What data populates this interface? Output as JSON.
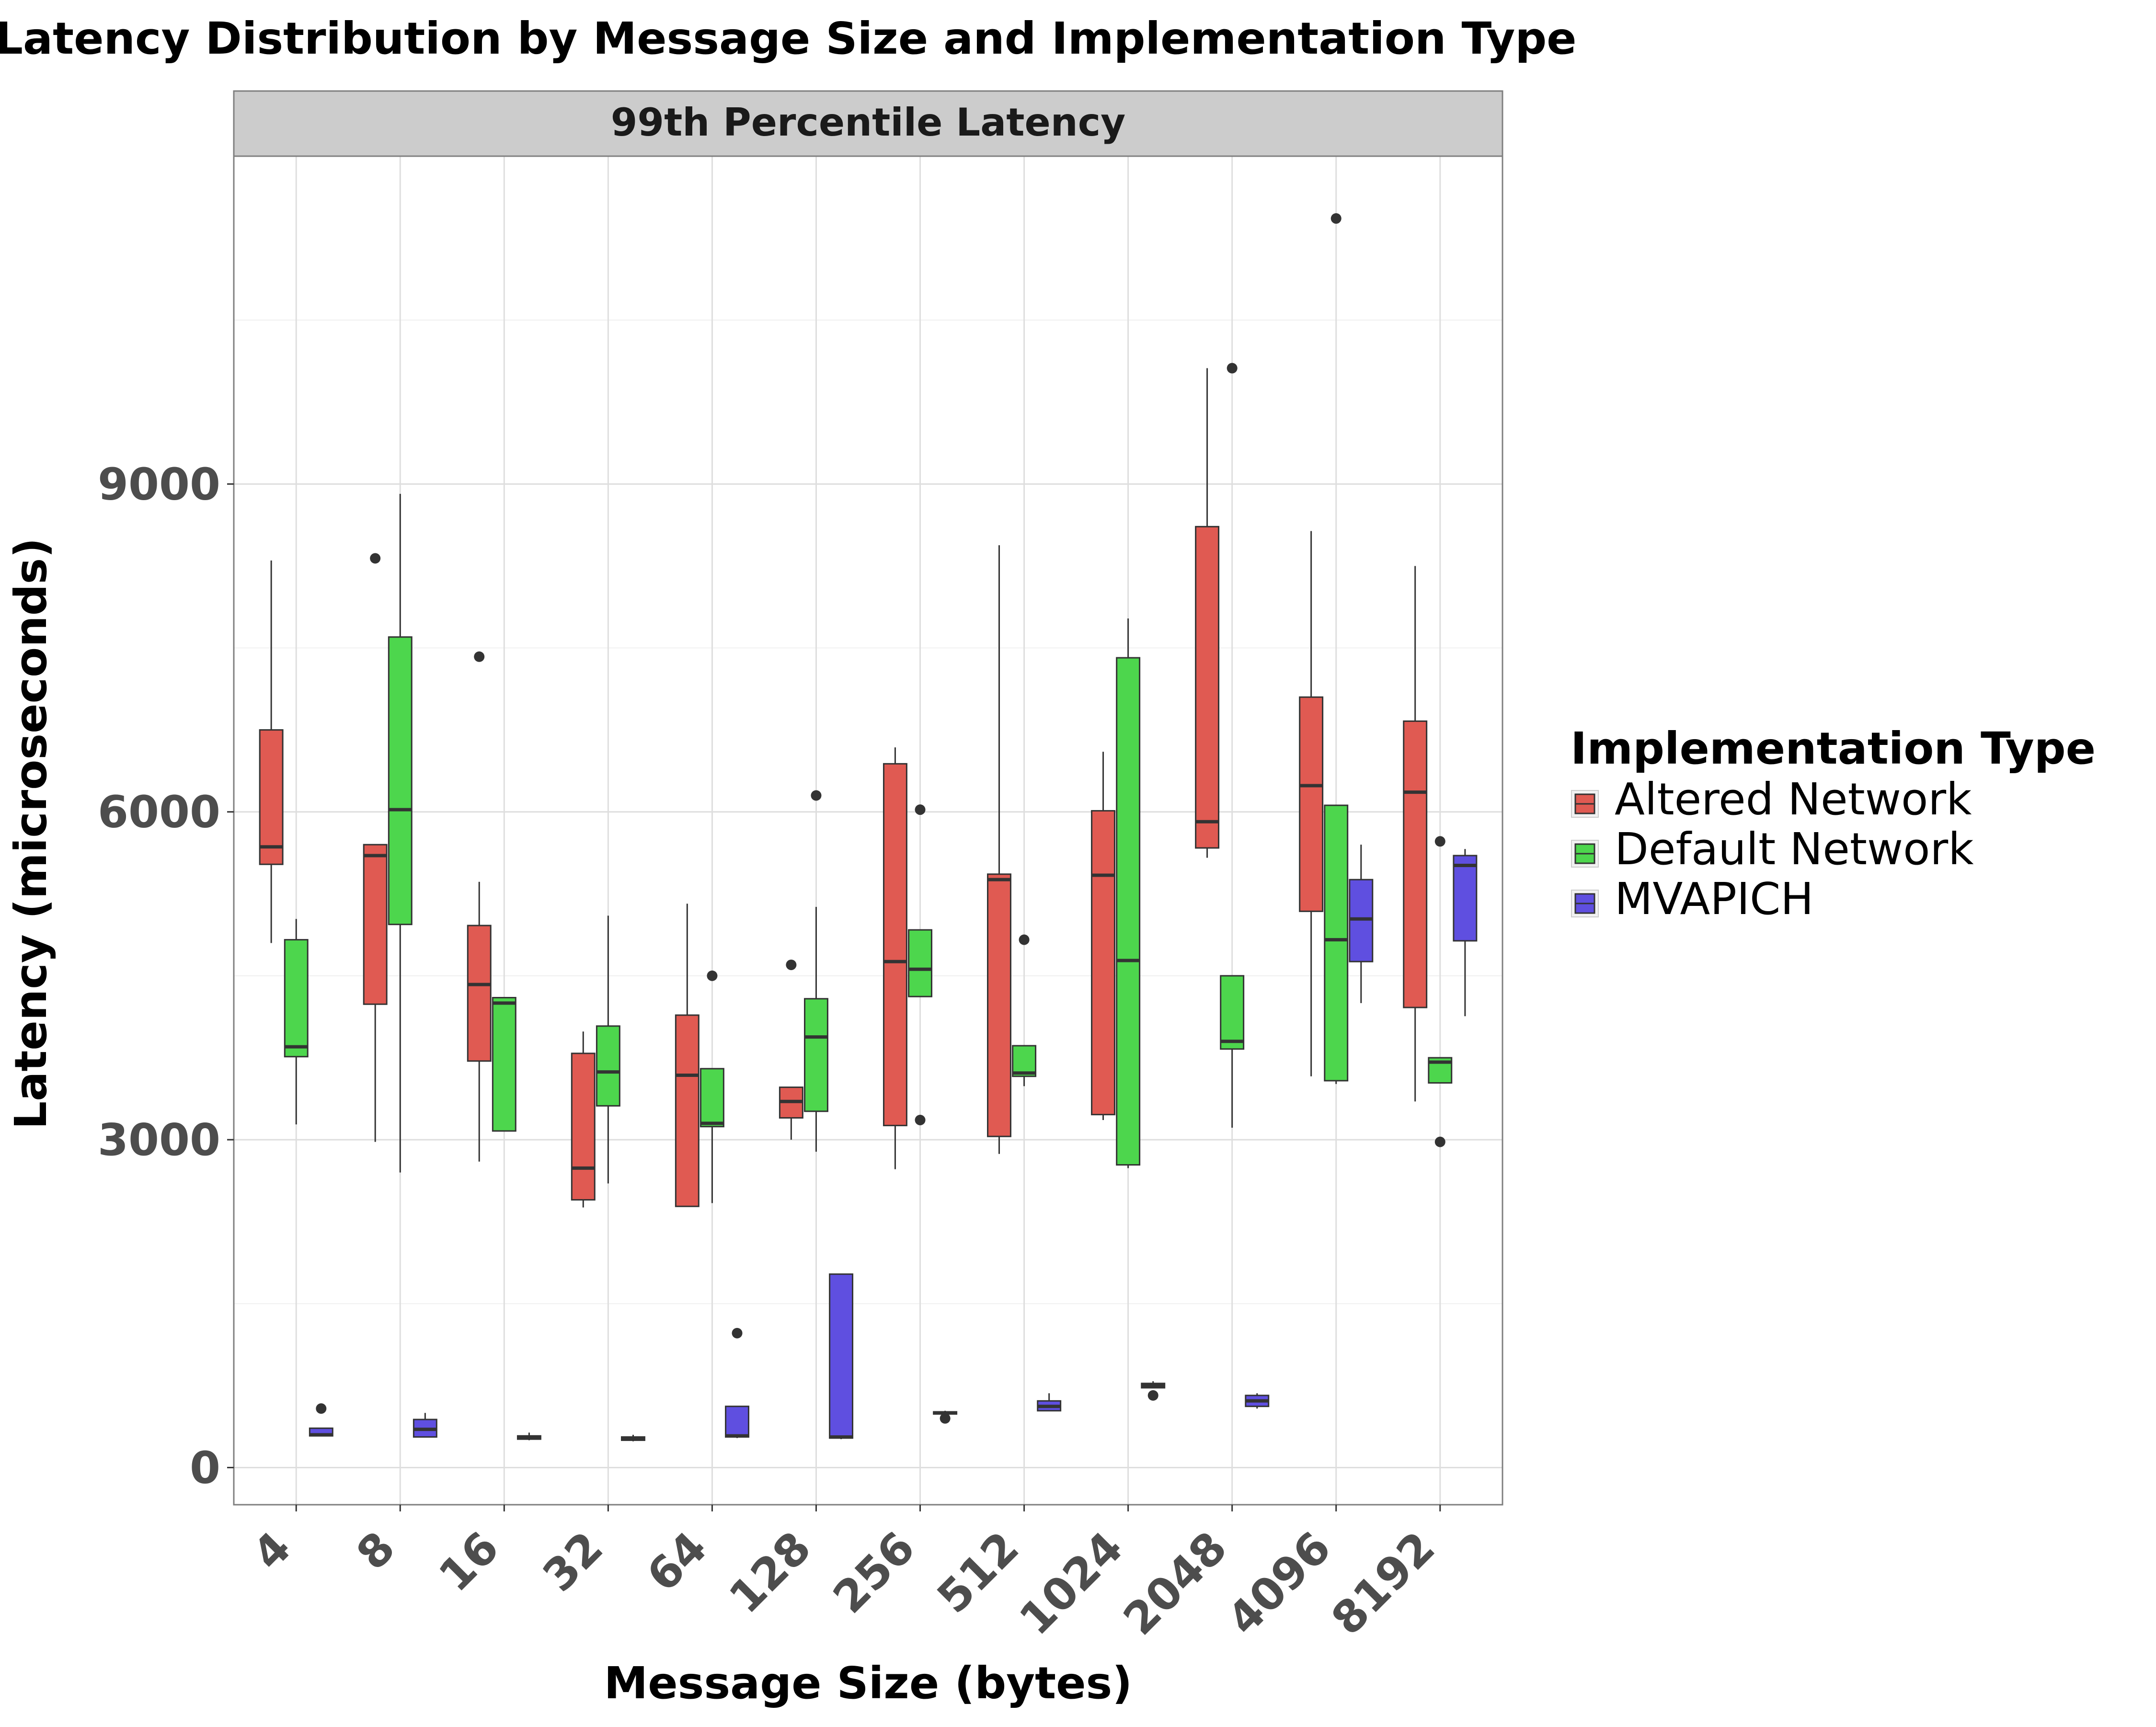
{
  "chart_data": {
    "type": "boxplot",
    "title": "Latency Distribution by Message Size and Implementation Type",
    "facet_label": "99th Percentile Latency",
    "xlabel": "Message Size (bytes)",
    "ylabel": "Latency (microseconds)",
    "ylim": [
      -340,
      12000
    ],
    "yticks": [
      0,
      3000,
      6000,
      9000
    ],
    "categories": [
      "4",
      "8",
      "16",
      "32",
      "64",
      "128",
      "256",
      "512",
      "1024",
      "2048",
      "4096",
      "8192"
    ],
    "legend": {
      "title": "Implementation Type",
      "position": "right"
    },
    "grid": true,
    "series": [
      {
        "name": "Altered Network",
        "color": "#E05A52",
        "boxes": [
          {
            "category": "4",
            "min": 4800,
            "q1": 5520,
            "median": 5680,
            "q3": 6750,
            "max": 8300,
            "outliers": []
          },
          {
            "category": "8",
            "min": 2980,
            "q1": 4240,
            "median": 5600,
            "q3": 5700,
            "max": 5700,
            "outliers": [
              8320
            ]
          },
          {
            "category": "16",
            "min": 2800,
            "q1": 3720,
            "median": 4420,
            "q3": 4960,
            "max": 5360,
            "outliers": [
              7420
            ]
          },
          {
            "category": "32",
            "min": 2380,
            "q1": 2450,
            "median": 2740,
            "q3": 3790,
            "max": 3990,
            "outliers": []
          },
          {
            "category": "64",
            "min": 2390,
            "q1": 2390,
            "median": 3590,
            "q3": 4140,
            "max": 5160,
            "outliers": []
          },
          {
            "category": "128",
            "min": 3000,
            "q1": 3200,
            "median": 3350,
            "q3": 3480,
            "max": 3480,
            "outliers": [
              4600
            ]
          },
          {
            "category": "256",
            "min": 2730,
            "q1": 3130,
            "median": 4630,
            "q3": 6440,
            "max": 6590,
            "outliers": []
          },
          {
            "category": "512",
            "min": 2870,
            "q1": 3030,
            "median": 5380,
            "q3": 5430,
            "max": 8440,
            "outliers": []
          },
          {
            "category": "1024",
            "min": 3180,
            "q1": 3230,
            "median": 5420,
            "q3": 6010,
            "max": 6550,
            "outliers": []
          },
          {
            "category": "2048",
            "min": 5580,
            "q1": 5670,
            "median": 5910,
            "q3": 8610,
            "max": 10060,
            "outliers": []
          },
          {
            "category": "4096",
            "min": 3580,
            "q1": 5090,
            "median": 6240,
            "q3": 7050,
            "max": 8570,
            "outliers": []
          },
          {
            "category": "8192",
            "min": 3350,
            "q1": 4210,
            "median": 6180,
            "q3": 6830,
            "max": 8250,
            "outliers": []
          }
        ]
      },
      {
        "name": "Default Network",
        "color": "#4DD64D",
        "boxes": [
          {
            "category": "4",
            "min": 3140,
            "q1": 3760,
            "median": 3850,
            "q3": 4830,
            "max": 5020,
            "outliers": []
          },
          {
            "category": "8",
            "min": 2700,
            "q1": 4970,
            "median": 6020,
            "q3": 7600,
            "max": 8910,
            "outliers": []
          },
          {
            "category": "16",
            "min": 3080,
            "q1": 3080,
            "median": 4250,
            "q3": 4300,
            "max": 4300,
            "outliers": []
          },
          {
            "category": "32",
            "min": 2600,
            "q1": 3310,
            "median": 3620,
            "q3": 4040,
            "max": 5050,
            "outliers": []
          },
          {
            "category": "64",
            "min": 2420,
            "q1": 3120,
            "median": 3150,
            "q3": 3650,
            "max": 3650,
            "outliers": [
              4500
            ]
          },
          {
            "category": "128",
            "min": 2890,
            "q1": 3260,
            "median": 3940,
            "q3": 4290,
            "max": 5130,
            "outliers": [
              6150
            ]
          },
          {
            "category": "256",
            "min": 4310,
            "q1": 4310,
            "median": 4560,
            "q3": 4920,
            "max": 4920,
            "outliers": [
              6020,
              3180
            ]
          },
          {
            "category": "512",
            "min": 3490,
            "q1": 3580,
            "median": 3610,
            "q3": 3860,
            "max": 3860,
            "outliers": [
              4830
            ]
          },
          {
            "category": "1024",
            "min": 2740,
            "q1": 2770,
            "median": 4640,
            "q3": 7410,
            "max": 7770,
            "outliers": []
          },
          {
            "category": "2048",
            "min": 3110,
            "q1": 3830,
            "median": 3900,
            "q3": 4500,
            "max": 4500,
            "outliers": [
              10060
            ]
          },
          {
            "category": "4096",
            "min": 3510,
            "q1": 3540,
            "median": 4830,
            "q3": 6060,
            "max": 6060,
            "outliers": [
              11430
            ]
          },
          {
            "category": "8192",
            "min": 3520,
            "q1": 3520,
            "median": 3710,
            "q3": 3750,
            "max": 3750,
            "outliers": [
              5730,
              2980
            ]
          }
        ]
      },
      {
        "name": "MVAPICH",
        "color": "#5F4FE0",
        "boxes": [
          {
            "category": "4",
            "min": 290,
            "q1": 290,
            "median": 300,
            "q3": 360,
            "max": 360,
            "outliers": [
              540
            ]
          },
          {
            "category": "8",
            "min": 280,
            "q1": 280,
            "median": 350,
            "q3": 440,
            "max": 500,
            "outliers": []
          },
          {
            "category": "16",
            "min": 250,
            "q1": 260,
            "median": 270,
            "q3": 290,
            "max": 320,
            "outliers": []
          },
          {
            "category": "32",
            "min": 240,
            "q1": 250,
            "median": 260,
            "q3": 280,
            "max": 300,
            "outliers": []
          },
          {
            "category": "64",
            "min": 270,
            "q1": 280,
            "median": 290,
            "q3": 560,
            "max": 560,
            "outliers": [
              1230
            ]
          },
          {
            "category": "128",
            "min": 260,
            "q1": 270,
            "median": 280,
            "q3": 1770,
            "max": 1770,
            "outliers": []
          },
          {
            "category": "256",
            "min": 480,
            "q1": 490,
            "median": 500,
            "q3": 510,
            "max": 520,
            "outliers": [
              450
            ]
          },
          {
            "category": "512",
            "min": 520,
            "q1": 520,
            "median": 560,
            "q3": 610,
            "max": 680,
            "outliers": []
          },
          {
            "category": "1024",
            "min": 730,
            "q1": 730,
            "median": 750,
            "q3": 770,
            "max": 790,
            "outliers": [
              660
            ]
          },
          {
            "category": "2048",
            "min": 540,
            "q1": 560,
            "median": 610,
            "q3": 660,
            "max": 680,
            "outliers": []
          },
          {
            "category": "4096",
            "min": 4250,
            "q1": 4630,
            "median": 5020,
            "q3": 5380,
            "max": 5700,
            "outliers": []
          },
          {
            "category": "8192",
            "min": 4130,
            "q1": 4820,
            "median": 5510,
            "q3": 5600,
            "max": 5660,
            "outliers": []
          }
        ]
      }
    ]
  }
}
